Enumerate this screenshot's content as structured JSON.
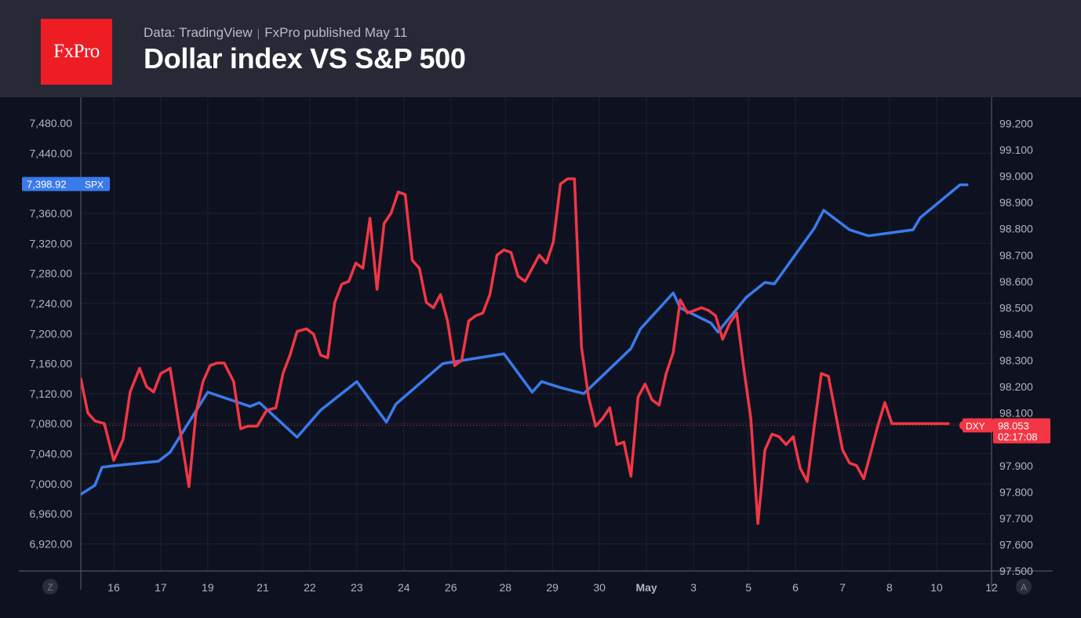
{
  "header": {
    "logo_text": "FxPro",
    "source": "Data: TradingView",
    "separator": "|",
    "published": "FxPro published May 11",
    "title": "Dollar index VS S&P 500"
  },
  "colors": {
    "background": "#0e1220",
    "header_bg": "#272a36",
    "logo": "#ee1c23",
    "spx": "#3a7bec",
    "dxy": "#f23645",
    "grid": "#1e2230",
    "axis_text": "#b2b5be"
  },
  "axis_corner_left": "Z",
  "axis_corner_right": "A",
  "chart_data": {
    "type": "line",
    "x_ticks": [
      {
        "label": "16",
        "x": 15.5
      },
      {
        "label": "17",
        "x": 16.5
      },
      {
        "label": "19",
        "x": 17.5
      },
      {
        "label": "21",
        "x": 18.67
      },
      {
        "label": "22",
        "x": 19.67
      },
      {
        "label": "23",
        "x": 20.67
      },
      {
        "label": "24",
        "x": 21.67
      },
      {
        "label": "26",
        "x": 22.67
      },
      {
        "label": "28",
        "x": 23.83
      },
      {
        "label": "29",
        "x": 24.83
      },
      {
        "label": "30",
        "x": 25.83
      },
      {
        "label": "May",
        "x": 26.83
      },
      {
        "label": "3",
        "x": 27.83
      },
      {
        "label": "5",
        "x": 29
      },
      {
        "label": "6",
        "x": 30
      },
      {
        "label": "7",
        "x": 31
      },
      {
        "label": "8",
        "x": 32
      },
      {
        "label": "10",
        "x": 33
      },
      {
        "label": "12",
        "x": 34.17
      }
    ],
    "x_range": [
      14.8,
      34.17
    ],
    "left_axis": {
      "ticks": [
        "6,920.00",
        "6,960.00",
        "7,000.00",
        "7,040.00",
        "7,080.00",
        "7,120.00",
        "7,160.00",
        "7,200.00",
        "7,240.00",
        "7,280.00",
        "7,320.00",
        "7,360.00",
        "7,440.00",
        "7,480.00"
      ],
      "range": [
        6884,
        7504
      ]
    },
    "right_axis": {
      "ticks": [
        "97.500",
        "97.600",
        "97.700",
        "97.800",
        "97.900",
        "98.100",
        "98.200",
        "98.300",
        "98.400",
        "98.500",
        "98.600",
        "98.700",
        "98.800",
        "98.900",
        "99.000",
        "99.100",
        "99.200"
      ],
      "range": [
        97.5,
        99.27
      ]
    },
    "series": [
      {
        "name": "SPX",
        "axis": "left",
        "last_label": "7,398.92",
        "x": [
          14.8,
          15.1,
          15.25,
          15.5,
          16.45,
          16.7,
          17.5,
          18.4,
          18.6,
          19.4,
          19.9,
          20.67,
          21.3,
          21.5,
          22.5,
          23.3,
          23.8,
          24.4,
          24.6,
          25.0,
          25.5,
          25.7,
          26.5,
          26.7,
          27.4,
          27.55,
          28.2,
          28.35,
          28.95,
          29.35,
          29.55,
          30.4,
          30.6,
          31.15,
          31.55,
          32.5,
          32.65,
          33.5,
          33.65
        ],
        "values": [
          6986,
          6998,
          7022,
          7024,
          7030,
          7042,
          7122,
          7103,
          7108,
          7062,
          7098,
          7136,
          7082,
          7106,
          7160,
          7168,
          7173,
          7122,
          7136,
          7128,
          7120,
          7132,
          7180,
          7206,
          7254,
          7234,
          7214,
          7202,
          7248,
          7268,
          7266,
          7340,
          7364,
          7338,
          7330,
          7338,
          7354,
          7398,
          7398
        ]
      },
      {
        "name": "DXY",
        "axis": "right",
        "last_label": "98.053",
        "last_time": "02:17:08",
        "x": [
          14.8,
          14.95,
          15.1,
          15.3,
          15.5,
          15.7,
          15.85,
          16.05,
          16.2,
          16.35,
          16.5,
          16.7,
          16.85,
          17.1,
          17.25,
          17.4,
          17.55,
          17.7,
          17.85,
          18.05,
          18.2,
          18.35,
          18.55,
          18.75,
          18.95,
          19.1,
          19.25,
          19.4,
          19.6,
          19.75,
          19.9,
          20.05,
          20.2,
          20.35,
          20.5,
          20.65,
          20.8,
          20.95,
          21.1,
          21.25,
          21.4,
          21.55,
          21.7,
          21.85,
          22.0,
          22.15,
          22.3,
          22.45,
          22.6,
          22.75,
          22.9,
          23.05,
          23.2,
          23.35,
          23.5,
          23.65,
          23.8,
          23.95,
          24.1,
          24.25,
          24.4,
          24.55,
          24.7,
          24.85,
          25.0,
          25.15,
          25.3,
          25.45,
          25.6,
          25.75,
          25.9,
          26.05,
          26.2,
          26.35,
          26.5,
          26.65,
          26.8,
          26.95,
          27.1,
          27.25,
          27.4,
          27.55,
          27.7,
          27.85,
          28.0,
          28.15,
          28.3,
          28.45,
          28.6,
          28.75,
          28.9,
          29.05,
          29.2,
          29.35,
          29.5,
          29.65,
          29.8,
          29.95,
          30.1,
          30.25,
          30.4,
          30.55,
          30.7,
          30.85,
          31.0,
          31.15,
          31.3,
          31.45,
          31.6,
          31.75,
          31.9,
          32.05,
          32.2,
          32.35,
          32.5,
          32.65,
          32.8,
          32.95,
          33.1,
          33.25
        ],
        "values": [
          98.23,
          98.1,
          98.07,
          98.06,
          97.92,
          98.0,
          98.18,
          98.27,
          98.2,
          98.18,
          98.25,
          98.27,
          98.1,
          97.82,
          98.1,
          98.22,
          98.28,
          98.29,
          98.29,
          98.22,
          98.04,
          98.05,
          98.05,
          98.11,
          98.12,
          98.25,
          98.32,
          98.41,
          98.42,
          98.4,
          98.32,
          98.31,
          98.52,
          98.59,
          98.6,
          98.67,
          98.65,
          98.84,
          98.57,
          98.82,
          98.86,
          98.94,
          98.93,
          98.68,
          98.65,
          98.52,
          98.5,
          98.55,
          98.45,
          98.28,
          98.3,
          98.45,
          98.47,
          98.48,
          98.55,
          98.7,
          98.72,
          98.71,
          98.62,
          98.6,
          98.65,
          98.7,
          98.67,
          98.75,
          98.97,
          98.99,
          98.99,
          98.35,
          98.16,
          98.05,
          98.08,
          98.12,
          97.98,
          97.99,
          97.86,
          98.16,
          98.21,
          98.15,
          98.13,
          98.25,
          98.33,
          98.53,
          98.48,
          98.49,
          98.5,
          98.49,
          98.47,
          98.38,
          98.44,
          98.48,
          98.27,
          98.08,
          97.68,
          97.96,
          98.02,
          98.01,
          97.98,
          98.01,
          97.89,
          97.84,
          98.05,
          98.25,
          98.24,
          98.1,
          97.96,
          97.91,
          97.9,
          97.85,
          97.95,
          98.05,
          98.14,
          98.06,
          98.06,
          98.06,
          98.06,
          98.06,
          98.06,
          98.06,
          98.06,
          98.06
        ],
        "end_x": 33.25
      }
    ],
    "grid": true
  }
}
